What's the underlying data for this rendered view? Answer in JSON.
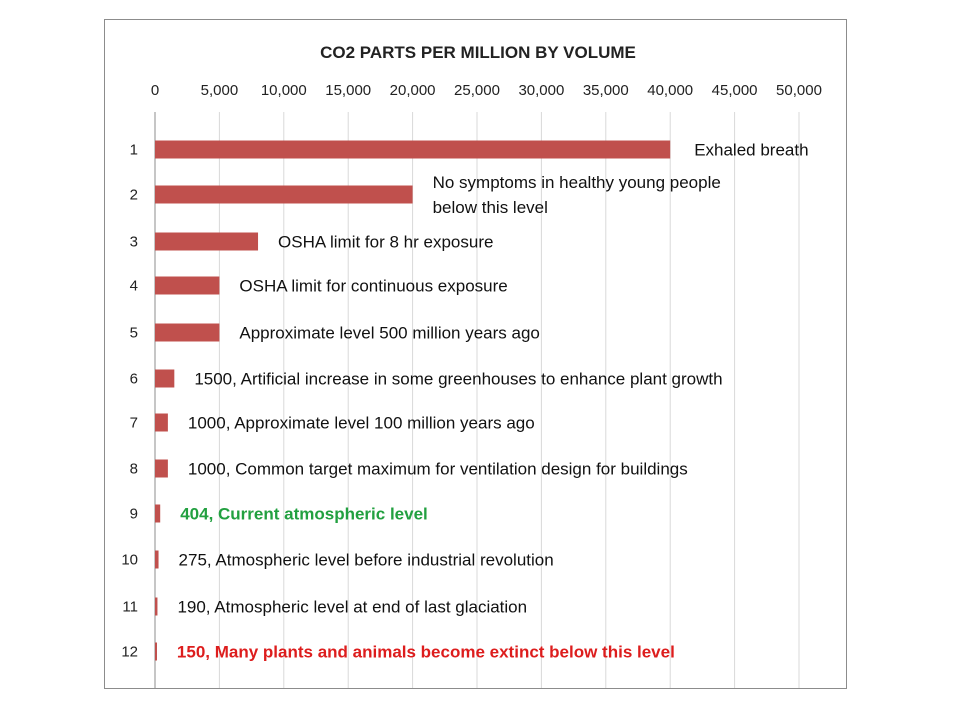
{
  "chart_data": {
    "type": "bar",
    "orientation": "horizontal",
    "title": "CO2 PARTS PER MILLION BY VOLUME",
    "xlabel": "",
    "ylabel": "",
    "xlim": [
      0,
      50000
    ],
    "x_ticks": [
      "0",
      "5,000",
      "10,000",
      "15,000",
      "20,000",
      "25,000",
      "30,000",
      "35,000",
      "40,000",
      "45,000",
      "50,000"
    ],
    "x_tick_values": [
      0,
      5000,
      10000,
      15000,
      20000,
      25000,
      30000,
      35000,
      40000,
      45000,
      50000
    ],
    "axis_position": "top",
    "grid": true,
    "bar_color": "#c0504d",
    "categories": [
      "1",
      "2",
      "3",
      "4",
      "5",
      "6",
      "7",
      "8",
      "9",
      "10",
      "11",
      "12"
    ],
    "values": [
      40000,
      20000,
      8000,
      5000,
      5000,
      1500,
      1000,
      1000,
      404,
      275,
      190,
      150
    ],
    "annotations": [
      {
        "lines": [
          "Exhaled breath"
        ],
        "style": "normal"
      },
      {
        "lines": [
          "No symptoms in healthy young people",
          "below this level"
        ],
        "style": "normal"
      },
      {
        "lines": [
          "OSHA limit for 8 hr exposure"
        ],
        "style": "normal"
      },
      {
        "lines": [
          "OSHA limit for continuous exposure"
        ],
        "style": "normal"
      },
      {
        "lines": [
          "Approximate level 500 million years ago"
        ],
        "style": "normal"
      },
      {
        "lines": [
          "1500, Artificial increase in some greenhouses to enhance plant growth"
        ],
        "style": "normal"
      },
      {
        "lines": [
          "1000, Approximate level 100 million years ago"
        ],
        "style": "normal"
      },
      {
        "lines": [
          "1000, Common target maximum for ventilation design for buildings"
        ],
        "style": "normal"
      },
      {
        "lines": [
          "404, Current atmospheric level"
        ],
        "style": "green"
      },
      {
        "lines": [
          "275, Atmospheric level before industrial revolution"
        ],
        "style": "normal"
      },
      {
        "lines": [
          "190, Atmospheric level at end of last glaciation"
        ],
        "style": "normal"
      },
      {
        "lines": [
          "150, Many plants and animals become extinct below this level"
        ],
        "style": "red"
      }
    ],
    "annotation_colors": {
      "green": "#22a040",
      "red": "#dd1d1d"
    }
  }
}
